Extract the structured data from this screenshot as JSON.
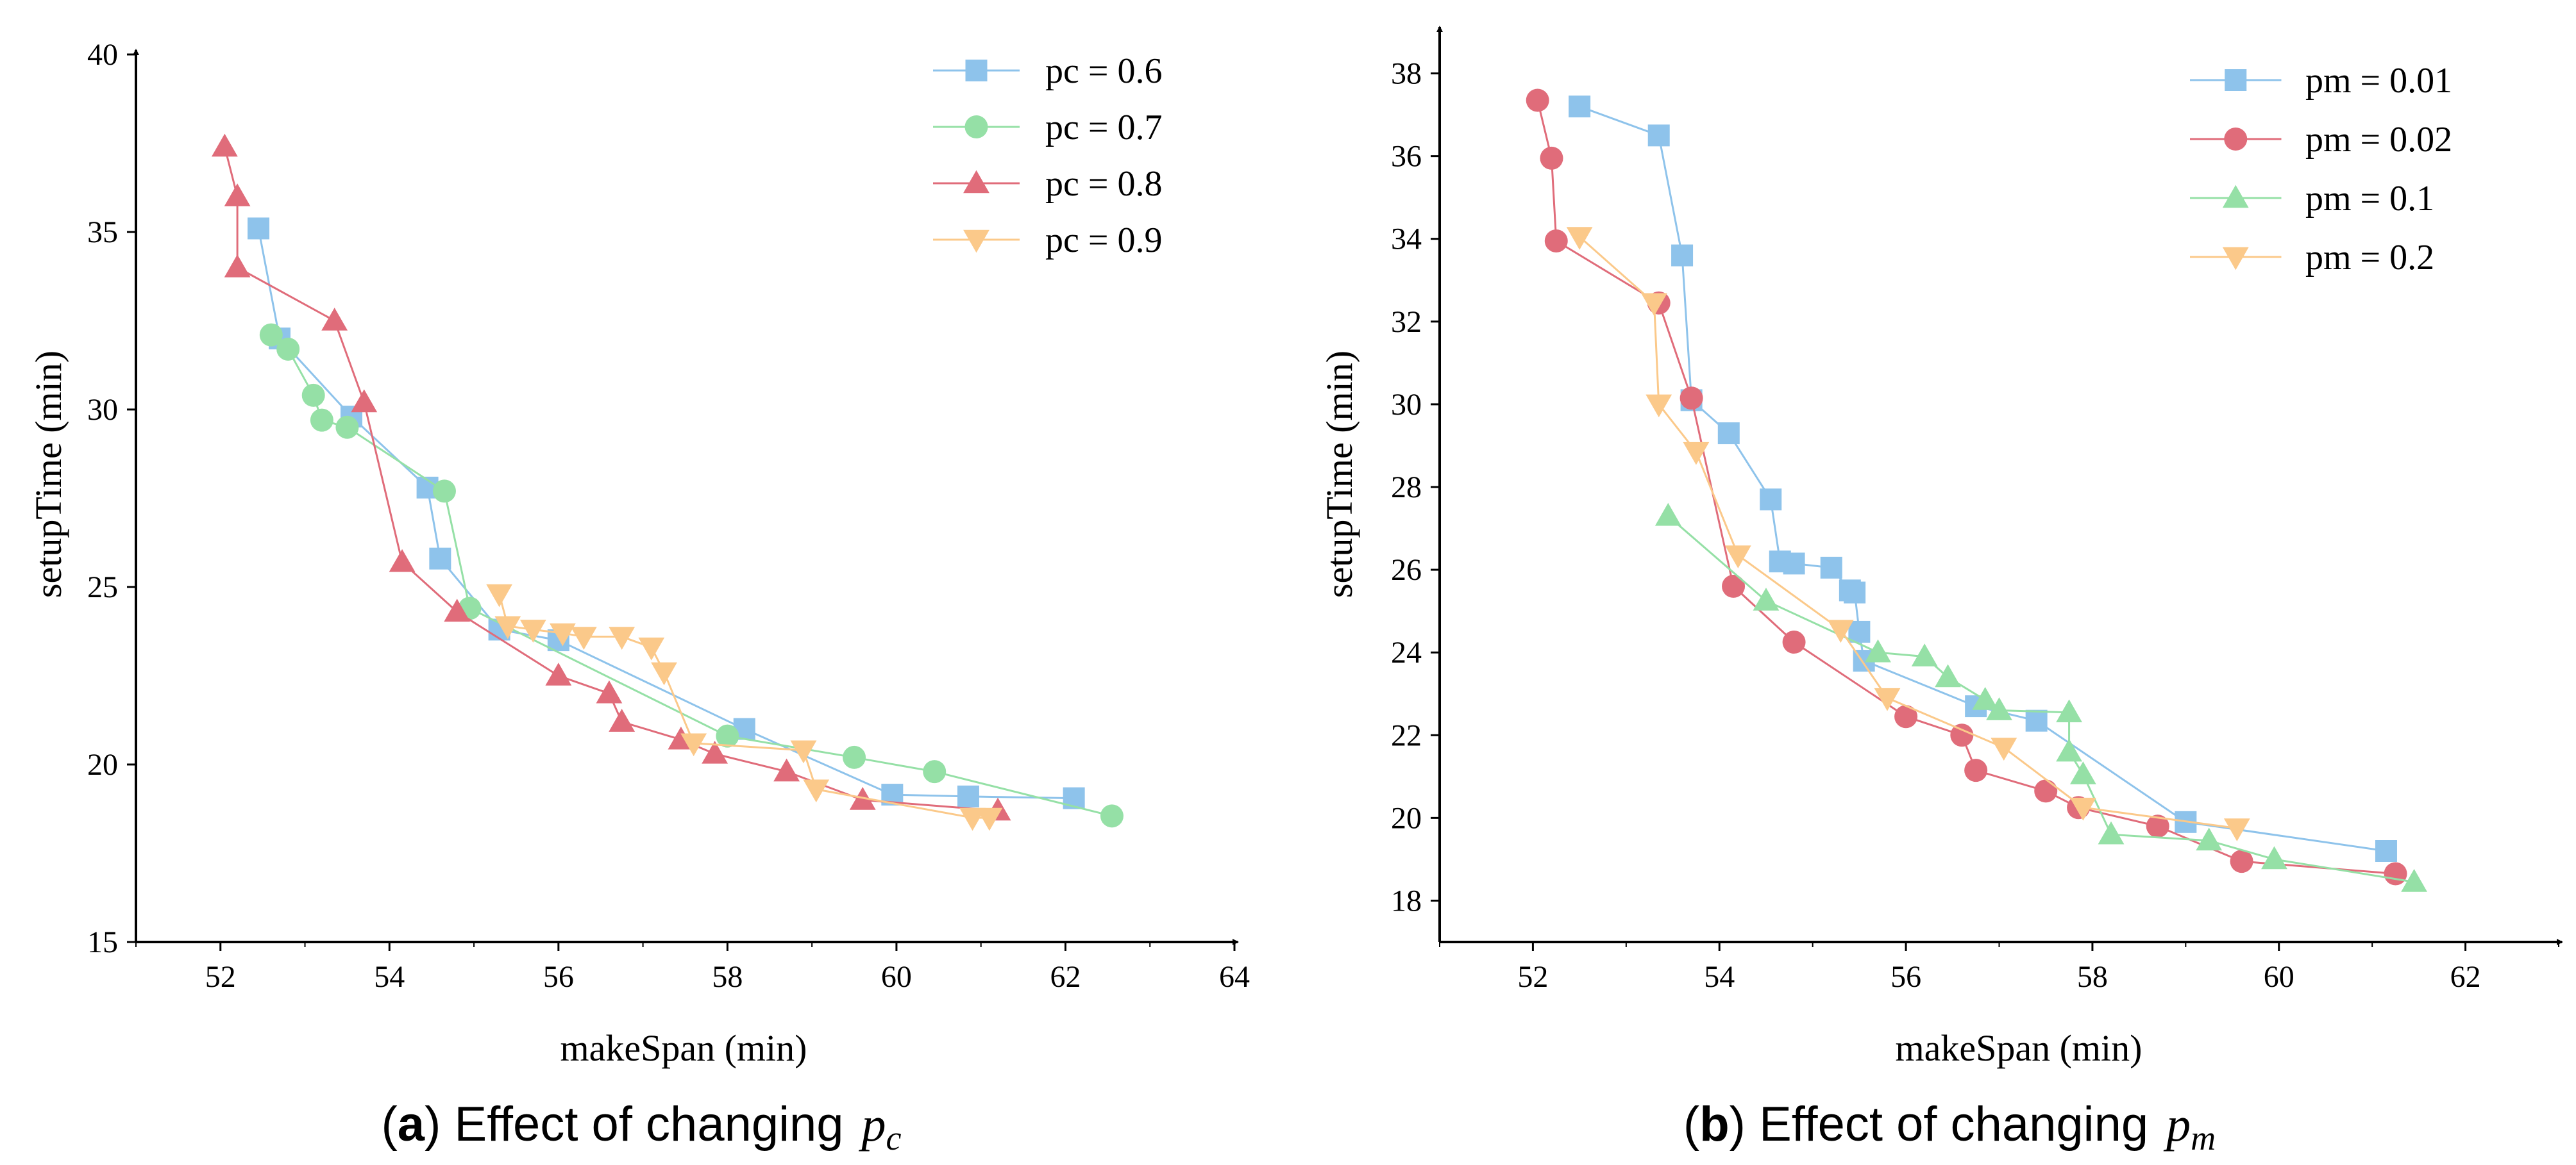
{
  "chart_data": [
    {
      "type": "line",
      "panel_label": "a",
      "caption": "Effect of changing",
      "caption_symbol": "p",
      "caption_subscript": "c",
      "xlabel": "makeSpan (min)",
      "ylabel": "setupTime (min)",
      "xlim": [
        51,
        64
      ],
      "ylim": [
        15,
        40
      ],
      "xticks": [
        52,
        54,
        56,
        58,
        60,
        62,
        64
      ],
      "yticks": [
        15,
        20,
        25,
        30,
        35,
        40
      ],
      "legend_position": "top-right",
      "series": [
        {
          "name": "pc = 0.6",
          "marker": "square",
          "color": "#8ec3eb",
          "points": [
            [
              52.45,
              35.1
            ],
            [
              52.7,
              32.0
            ],
            [
              53.55,
              29.8
            ],
            [
              54.45,
              27.8
            ],
            [
              54.6,
              25.8
            ],
            [
              55.3,
              23.8
            ],
            [
              56.0,
              23.5
            ],
            [
              58.2,
              21.0
            ],
            [
              59.95,
              19.15
            ],
            [
              60.85,
              19.1
            ],
            [
              62.1,
              19.05
            ]
          ]
        },
        {
          "name": "pc = 0.7",
          "marker": "circle",
          "color": "#95e0a6",
          "points": [
            [
              52.6,
              32.1
            ],
            [
              52.8,
              31.7
            ],
            [
              53.1,
              30.4
            ],
            [
              53.2,
              29.7
            ],
            [
              53.5,
              29.5
            ],
            [
              54.65,
              27.7
            ],
            [
              54.95,
              24.4
            ],
            [
              58.0,
              20.8
            ],
            [
              59.5,
              20.2
            ],
            [
              60.45,
              19.8
            ],
            [
              62.55,
              18.55
            ]
          ]
        },
        {
          "name": "pc = 0.8",
          "marker": "triangle-up",
          "color": "#e06c7a",
          "points": [
            [
              52.05,
              37.4
            ],
            [
              52.2,
              36.0
            ],
            [
              52.2,
              34.0
            ],
            [
              53.35,
              32.5
            ],
            [
              53.7,
              30.2
            ],
            [
              54.15,
              25.7
            ],
            [
              54.8,
              24.3
            ],
            [
              56.0,
              22.5
            ],
            [
              56.6,
              22.0
            ],
            [
              56.75,
              21.2
            ],
            [
              57.45,
              20.7
            ],
            [
              57.85,
              20.3
            ],
            [
              58.7,
              19.8
            ],
            [
              59.6,
              19.0
            ],
            [
              61.2,
              18.7
            ]
          ]
        },
        {
          "name": "pc = 0.9",
          "marker": "triangle-down",
          "color": "#fbc98a",
          "points": [
            [
              55.3,
              24.8
            ],
            [
              55.4,
              23.9
            ],
            [
              55.7,
              23.8
            ],
            [
              56.05,
              23.7
            ],
            [
              56.3,
              23.6
            ],
            [
              56.75,
              23.6
            ],
            [
              57.1,
              23.3
            ],
            [
              57.25,
              22.6
            ],
            [
              57.6,
              20.6
            ],
            [
              58.9,
              20.4
            ],
            [
              59.05,
              19.3
            ],
            [
              60.9,
              18.5
            ],
            [
              61.1,
              18.5
            ]
          ]
        }
      ]
    },
    {
      "type": "line",
      "panel_label": "b",
      "caption": "Effect of changing",
      "caption_symbol": "p",
      "caption_subscript": "m",
      "xlabel": "makeSpan (min)",
      "ylabel": "setupTime (min)",
      "xlim": [
        51,
        63
      ],
      "ylim": [
        17,
        39
      ],
      "xticks": [
        52,
        54,
        56,
        58,
        60,
        62
      ],
      "yticks": [
        18,
        20,
        22,
        24,
        26,
        28,
        30,
        32,
        34,
        36,
        38
      ],
      "legend_position": "top-right",
      "series": [
        {
          "name": "pm = 0.01",
          "marker": "square",
          "color": "#8ec3eb",
          "points": [
            [
              52.5,
              37.2
            ],
            [
              53.35,
              36.5
            ],
            [
              53.6,
              33.6
            ],
            [
              53.7,
              30.1
            ],
            [
              54.1,
              29.3
            ],
            [
              54.55,
              27.7
            ],
            [
              54.65,
              26.2
            ],
            [
              54.8,
              26.15
            ],
            [
              55.2,
              26.05
            ],
            [
              55.4,
              25.5
            ],
            [
              55.45,
              25.45
            ],
            [
              55.5,
              24.5
            ],
            [
              55.55,
              23.8
            ],
            [
              56.75,
              22.7
            ],
            [
              57.4,
              22.35
            ],
            [
              59.0,
              19.9
            ],
            [
              61.15,
              19.2
            ]
          ]
        },
        {
          "name": "pm = 0.02",
          "marker": "circle",
          "color": "#e06c7a",
          "points": [
            [
              52.05,
              37.35
            ],
            [
              52.2,
              35.95
            ],
            [
              52.25,
              33.95
            ],
            [
              53.35,
              32.45
            ],
            [
              53.7,
              30.15
            ],
            [
              54.15,
              25.6
            ],
            [
              54.8,
              24.25
            ],
            [
              56.0,
              22.45
            ],
            [
              56.6,
              22.0
            ],
            [
              56.75,
              21.15
            ],
            [
              57.5,
              20.65
            ],
            [
              57.85,
              20.25
            ],
            [
              58.7,
              19.8
            ],
            [
              59.6,
              18.95
            ],
            [
              61.25,
              18.65
            ]
          ]
        },
        {
          "name": "pm = 0.1",
          "marker": "triangle-up",
          "color": "#95e0a6",
          "points": [
            [
              53.45,
              27.3
            ],
            [
              54.5,
              25.25
            ],
            [
              55.7,
              24.0
            ],
            [
              56.2,
              23.9
            ],
            [
              56.45,
              23.4
            ],
            [
              56.85,
              22.85
            ],
            [
              57.0,
              22.6
            ],
            [
              57.75,
              22.55
            ],
            [
              57.75,
              21.6
            ],
            [
              57.9,
              21.05
            ],
            [
              58.2,
              19.6
            ],
            [
              59.25,
              19.45
            ],
            [
              59.95,
              19.0
            ],
            [
              61.45,
              18.45
            ]
          ]
        },
        {
          "name": "pm = 0.2",
          "marker": "triangle-down",
          "color": "#fbc98a",
          "points": [
            [
              52.5,
              34.05
            ],
            [
              53.3,
              32.45
            ],
            [
              53.35,
              30.0
            ],
            [
              53.75,
              28.85
            ],
            [
              54.2,
              26.35
            ],
            [
              55.3,
              24.55
            ],
            [
              55.8,
              22.9
            ],
            [
              57.05,
              21.7
            ],
            [
              57.9,
              20.25
            ],
            [
              59.55,
              19.75
            ]
          ]
        }
      ]
    }
  ]
}
